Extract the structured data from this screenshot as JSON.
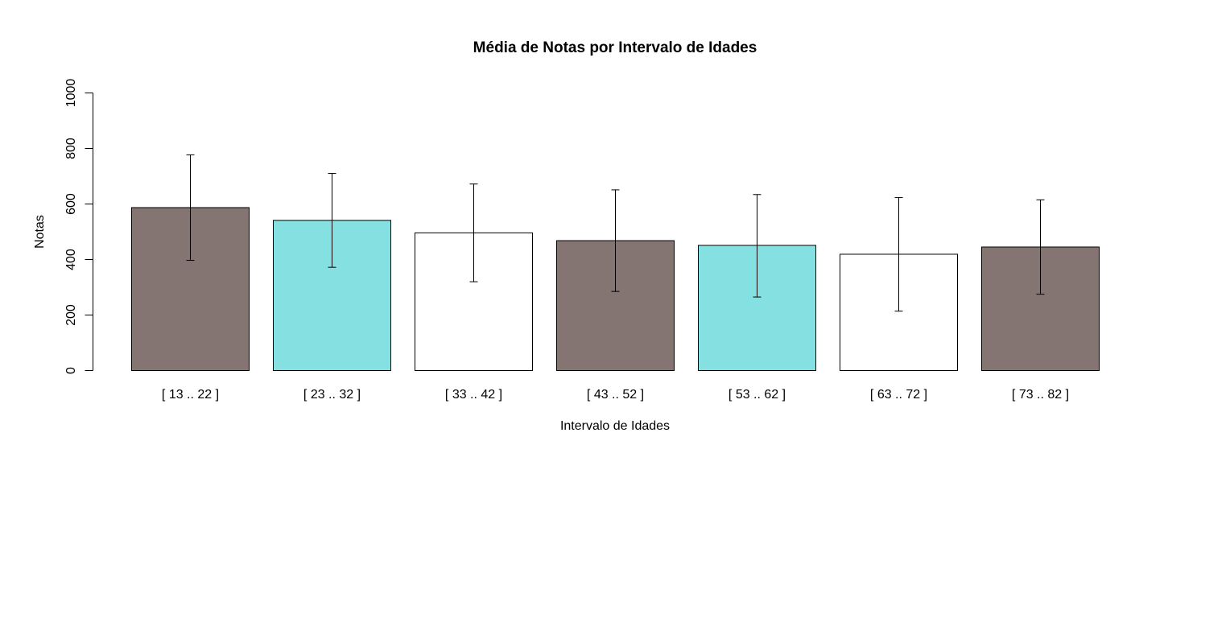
{
  "chart_data": {
    "type": "bar",
    "title": "Média de Notas por Intervalo de Idades",
    "xlabel": "Intervalo de Idades",
    "ylabel": "Notas",
    "categories": [
      "[ 13 .. 22 ]",
      "[ 23 .. 32 ]",
      "[ 33 .. 42 ]",
      "[ 43 .. 52 ]",
      "[ 53 .. 62 ]",
      "[ 63 .. 72 ]",
      "[ 73 .. 82 ]"
    ],
    "values": [
      587,
      541,
      496,
      468,
      451,
      419,
      445
    ],
    "error_low": [
      397,
      372,
      320,
      285,
      265,
      214,
      275
    ],
    "error_high": [
      777,
      710,
      672,
      651,
      634,
      623,
      615
    ],
    "colors": [
      "#847472",
      "#84e0e1",
      "#ffffff",
      "#847472",
      "#84e0e1",
      "#ffffff",
      "#847472"
    ],
    "ylim": [
      0,
      1000
    ],
    "yticks": [
      0,
      200,
      400,
      600,
      800,
      1000
    ],
    "grid": false,
    "legend": "none"
  }
}
